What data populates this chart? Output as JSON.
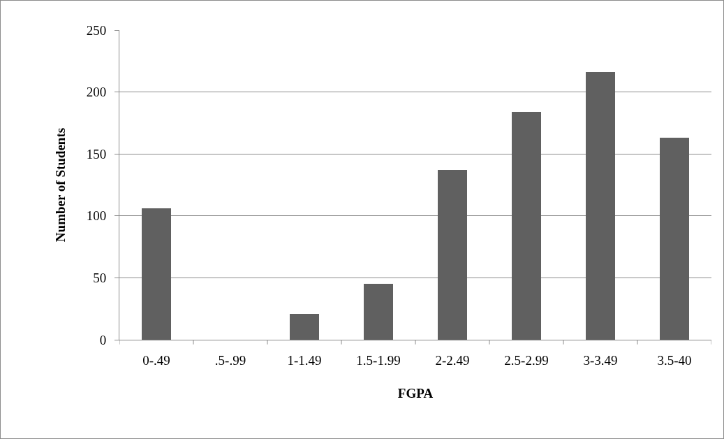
{
  "chart_data": {
    "type": "bar",
    "xlabel": "FGPA",
    "ylabel": "Number of Students",
    "categories": [
      "0-.49",
      ".5-.99",
      "1-1.49",
      "1.5-1.99",
      "2-2.49",
      "2.5-2.99",
      "3-3.49",
      "3.5-40"
    ],
    "values": [
      106,
      0,
      21,
      45,
      137,
      184,
      216,
      163
    ],
    "color": "#606060",
    "ylim": [
      0,
      250
    ],
    "yticks": [
      0,
      50,
      100,
      150,
      200,
      250
    ],
    "grid": "y",
    "legend": false
  }
}
